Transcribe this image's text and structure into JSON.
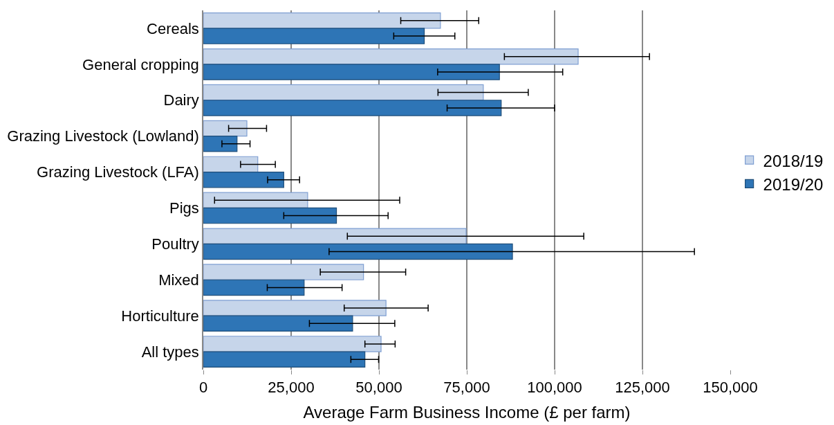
{
  "chart_data": {
    "type": "bar",
    "orientation": "horizontal",
    "xlabel": "Average Farm Business Income (£ per farm)",
    "categories": [
      "Cereals",
      "General cropping",
      "Dairy",
      "Grazing Livestock (Lowland)",
      "Grazing Livestock (LFA)",
      "Pigs",
      "Poultry",
      "Mixed",
      "Horticulture",
      "All types"
    ],
    "series": [
      {
        "name": "2018/19",
        "color": "#c6d5ea",
        "values": [
          67500,
          106700,
          79700,
          12400,
          15500,
          29700,
          74800,
          45600,
          52000,
          50600
        ],
        "errors": [
          [
            56200,
            78400
          ],
          [
            85700,
            127000
          ],
          [
            66800,
            92500
          ],
          [
            7200,
            18000
          ],
          [
            10600,
            20500
          ],
          [
            3200,
            55900
          ],
          [
            41000,
            108300
          ],
          [
            33300,
            57600
          ],
          [
            40100,
            64000
          ],
          [
            46000,
            54600
          ]
        ]
      },
      {
        "name": "2019/20",
        "color": "#2e75b6",
        "values": [
          62900,
          84300,
          84800,
          9600,
          22900,
          37900,
          88000,
          28700,
          42500,
          46000
        ],
        "errors": [
          [
            54200,
            71600
          ],
          [
            66700,
            102300
          ],
          [
            69400,
            100000
          ],
          [
            5300,
            13300
          ],
          [
            18300,
            27400
          ],
          [
            22900,
            52600
          ],
          [
            35800,
            139800
          ],
          [
            18200,
            39500
          ],
          [
            30200,
            54500
          ],
          [
            42000,
            49900
          ]
        ]
      }
    ],
    "xlim": [
      0,
      150000
    ],
    "xticks": [
      {
        "value": 0,
        "label": "0"
      },
      {
        "value": 25000,
        "label": "25,000"
      },
      {
        "value": 50000,
        "label": "50,000"
      },
      {
        "value": 75000,
        "label": "75,000"
      },
      {
        "value": 100000,
        "label": "100,000"
      },
      {
        "value": 125000,
        "label": "125,000"
      },
      {
        "value": 150000,
        "label": "150,000"
      }
    ],
    "grid": "x",
    "legend": "right"
  }
}
